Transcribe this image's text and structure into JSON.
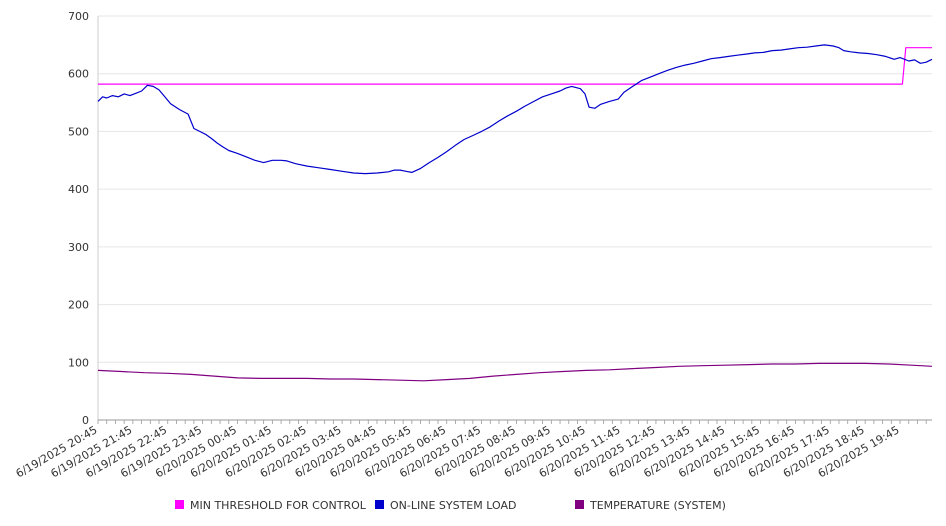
{
  "chart_data": {
    "type": "line",
    "title": "",
    "xlabel": "",
    "ylabel": "",
    "ylim": [
      0,
      700
    ],
    "y_ticks": [
      0,
      100,
      200,
      300,
      400,
      500,
      600,
      700
    ],
    "x_range": [
      0,
      1435
    ],
    "x_tick_labels": [
      {
        "x": 0,
        "label": "6/19/2025 20:45"
      },
      {
        "x": 60,
        "label": "6/19/2025 21:45"
      },
      {
        "x": 120,
        "label": "6/19/2025 22:45"
      },
      {
        "x": 180,
        "label": "6/19/2025 23:45"
      },
      {
        "x": 240,
        "label": "6/20/2025 00:45"
      },
      {
        "x": 300,
        "label": "6/20/2025 01:45"
      },
      {
        "x": 360,
        "label": "6/20/2025 02:45"
      },
      {
        "x": 420,
        "label": "6/20/2025 03:45"
      },
      {
        "x": 480,
        "label": "6/20/2025 04:45"
      },
      {
        "x": 540,
        "label": "6/20/2025 05:45"
      },
      {
        "x": 600,
        "label": "6/20/2025 06:45"
      },
      {
        "x": 660,
        "label": "6/20/2025 07:45"
      },
      {
        "x": 720,
        "label": "6/20/2025 08:45"
      },
      {
        "x": 780,
        "label": "6/20/2025 09:45"
      },
      {
        "x": 840,
        "label": "6/20/2025 10:45"
      },
      {
        "x": 900,
        "label": "6/20/2025 11:45"
      },
      {
        "x": 960,
        "label": "6/20/2025 12:45"
      },
      {
        "x": 1020,
        "label": "6/20/2025 13:45"
      },
      {
        "x": 1080,
        "label": "6/20/2025 14:45"
      },
      {
        "x": 1140,
        "label": "6/20/2025 15:45"
      },
      {
        "x": 1200,
        "label": "6/20/2025 16:45"
      },
      {
        "x": 1260,
        "label": "6/20/2025 17:45"
      },
      {
        "x": 1320,
        "label": "6/20/2025 18:45"
      },
      {
        "x": 1380,
        "label": "6/20/2025 19:45"
      }
    ],
    "grid": true,
    "legend_position": "bottom",
    "series": [
      {
        "name": "MIN THRESHOLD FOR CONTROL",
        "color": "#ff00ff",
        "points": [
          [
            0,
            582
          ],
          [
            1384,
            582
          ],
          [
            1390,
            645
          ],
          [
            1435,
            645
          ]
        ]
      },
      {
        "name": "ON-LINE SYSTEM LOAD",
        "color": "#0000cc",
        "points": [
          [
            0,
            552
          ],
          [
            8,
            560
          ],
          [
            15,
            558
          ],
          [
            25,
            562
          ],
          [
            35,
            560
          ],
          [
            45,
            565
          ],
          [
            55,
            562
          ],
          [
            65,
            566
          ],
          [
            75,
            570
          ],
          [
            85,
            580
          ],
          [
            95,
            578
          ],
          [
            105,
            572
          ],
          [
            115,
            560
          ],
          [
            125,
            548
          ],
          [
            140,
            538
          ],
          [
            155,
            530
          ],
          [
            165,
            505
          ],
          [
            175,
            500
          ],
          [
            185,
            495
          ],
          [
            195,
            488
          ],
          [
            205,
            480
          ],
          [
            215,
            473
          ],
          [
            225,
            467
          ],
          [
            240,
            462
          ],
          [
            255,
            456
          ],
          [
            270,
            450
          ],
          [
            285,
            446
          ],
          [
            300,
            450
          ],
          [
            315,
            450
          ],
          [
            325,
            449
          ],
          [
            340,
            444
          ],
          [
            360,
            440
          ],
          [
            380,
            437
          ],
          [
            400,
            434
          ],
          [
            420,
            431
          ],
          [
            440,
            428
          ],
          [
            460,
            427
          ],
          [
            480,
            428
          ],
          [
            500,
            430
          ],
          [
            510,
            433
          ],
          [
            520,
            433
          ],
          [
            530,
            431
          ],
          [
            540,
            429
          ],
          [
            555,
            436
          ],
          [
            570,
            446
          ],
          [
            585,
            455
          ],
          [
            600,
            465
          ],
          [
            615,
            476
          ],
          [
            630,
            486
          ],
          [
            645,
            493
          ],
          [
            660,
            500
          ],
          [
            675,
            508
          ],
          [
            690,
            518
          ],
          [
            705,
            527
          ],
          [
            720,
            535
          ],
          [
            735,
            544
          ],
          [
            750,
            552
          ],
          [
            765,
            560
          ],
          [
            780,
            565
          ],
          [
            795,
            570
          ],
          [
            805,
            575
          ],
          [
            815,
            578
          ],
          [
            830,
            574
          ],
          [
            838,
            565
          ],
          [
            845,
            542
          ],
          [
            855,
            540
          ],
          [
            865,
            547
          ],
          [
            880,
            552
          ],
          [
            895,
            556
          ],
          [
            905,
            568
          ],
          [
            920,
            578
          ],
          [
            935,
            588
          ],
          [
            950,
            594
          ],
          [
            965,
            600
          ],
          [
            980,
            606
          ],
          [
            995,
            611
          ],
          [
            1010,
            615
          ],
          [
            1025,
            618
          ],
          [
            1040,
            622
          ],
          [
            1055,
            626
          ],
          [
            1070,
            628
          ],
          [
            1085,
            630
          ],
          [
            1100,
            632
          ],
          [
            1115,
            634
          ],
          [
            1130,
            636
          ],
          [
            1145,
            637
          ],
          [
            1160,
            640
          ],
          [
            1175,
            641
          ],
          [
            1190,
            643
          ],
          [
            1205,
            645
          ],
          [
            1220,
            646
          ],
          [
            1235,
            648
          ],
          [
            1250,
            650
          ],
          [
            1265,
            648
          ],
          [
            1275,
            645
          ],
          [
            1283,
            640
          ],
          [
            1295,
            638
          ],
          [
            1310,
            636
          ],
          [
            1325,
            635
          ],
          [
            1340,
            633
          ],
          [
            1355,
            630
          ],
          [
            1370,
            625
          ],
          [
            1380,
            628
          ],
          [
            1395,
            622
          ],
          [
            1405,
            624
          ],
          [
            1415,
            618
          ],
          [
            1425,
            620
          ],
          [
            1435,
            625
          ]
        ]
      },
      {
        "name": "TEMPERATURE (SYSTEM)",
        "color": "#800080",
        "points": [
          [
            0,
            86
          ],
          [
            40,
            84
          ],
          [
            80,
            82
          ],
          [
            120,
            81
          ],
          [
            160,
            79
          ],
          [
            200,
            76
          ],
          [
            240,
            73
          ],
          [
            280,
            72
          ],
          [
            320,
            72
          ],
          [
            360,
            72
          ],
          [
            400,
            71
          ],
          [
            440,
            71
          ],
          [
            480,
            70
          ],
          [
            520,
            69
          ],
          [
            560,
            68
          ],
          [
            600,
            70
          ],
          [
            640,
            72
          ],
          [
            680,
            76
          ],
          [
            720,
            79
          ],
          [
            760,
            82
          ],
          [
            800,
            84
          ],
          [
            840,
            86
          ],
          [
            880,
            87
          ],
          [
            920,
            89
          ],
          [
            960,
            91
          ],
          [
            1000,
            93
          ],
          [
            1040,
            94
          ],
          [
            1080,
            95
          ],
          [
            1120,
            96
          ],
          [
            1160,
            97
          ],
          [
            1200,
            97
          ],
          [
            1240,
            98
          ],
          [
            1280,
            98
          ],
          [
            1320,
            98
          ],
          [
            1360,
            97
          ],
          [
            1400,
            95
          ],
          [
            1435,
            93
          ]
        ]
      }
    ]
  }
}
